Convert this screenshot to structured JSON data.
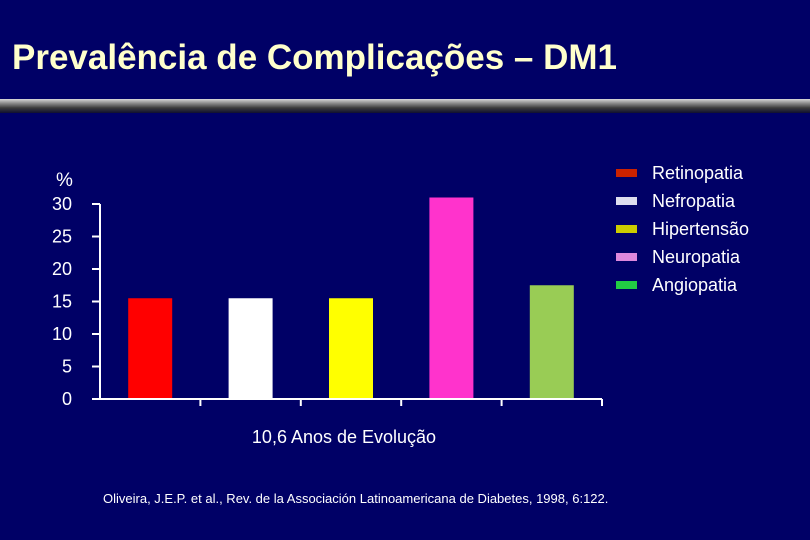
{
  "slide": {
    "title": "Prevalência de Complicações – DM1",
    "citation": "Oliveira, J.E.P. et al., Rev. de la Associación Latinoamericana de Diabetes, 1998, 6:122."
  },
  "chart_data": {
    "type": "bar",
    "title": "",
    "xlabel": "10,6 Anos de Evolução",
    "ylabel": "%",
    "ylim": [
      0,
      30
    ],
    "yticks": [
      "0",
      "5",
      "10",
      "15",
      "20",
      "25",
      "30"
    ],
    "grid": false,
    "legend_position": "top-right",
    "categories": [
      "10,6 Anos de Evolução"
    ],
    "series": [
      {
        "name": "Retinopatia",
        "values": [
          15.5
        ],
        "color": "#FF0000"
      },
      {
        "name": "Nefropatia",
        "values": [
          15.5
        ],
        "color": "#FFFFFF"
      },
      {
        "name": "Hipertensão",
        "values": [
          15.5
        ],
        "color": "#FFFF00"
      },
      {
        "name": "Neuropatia",
        "values": [
          31
        ],
        "color": "#FF33CC"
      },
      {
        "name": "Angiopatia",
        "values": [
          17.5
        ],
        "color": "#99CC55"
      }
    ]
  },
  "legend_swatches": [
    {
      "label": "Retinopatia",
      "color": "#CC2200"
    },
    {
      "label": "Nefropatia",
      "color": "#DDDDEE"
    },
    {
      "label": "Hipertensão",
      "color": "#CCCC00"
    },
    {
      "label": "Neuropatia",
      "color": "#DD88DD"
    },
    {
      "label": "Angiopatia",
      "color": "#22CC44"
    }
  ]
}
